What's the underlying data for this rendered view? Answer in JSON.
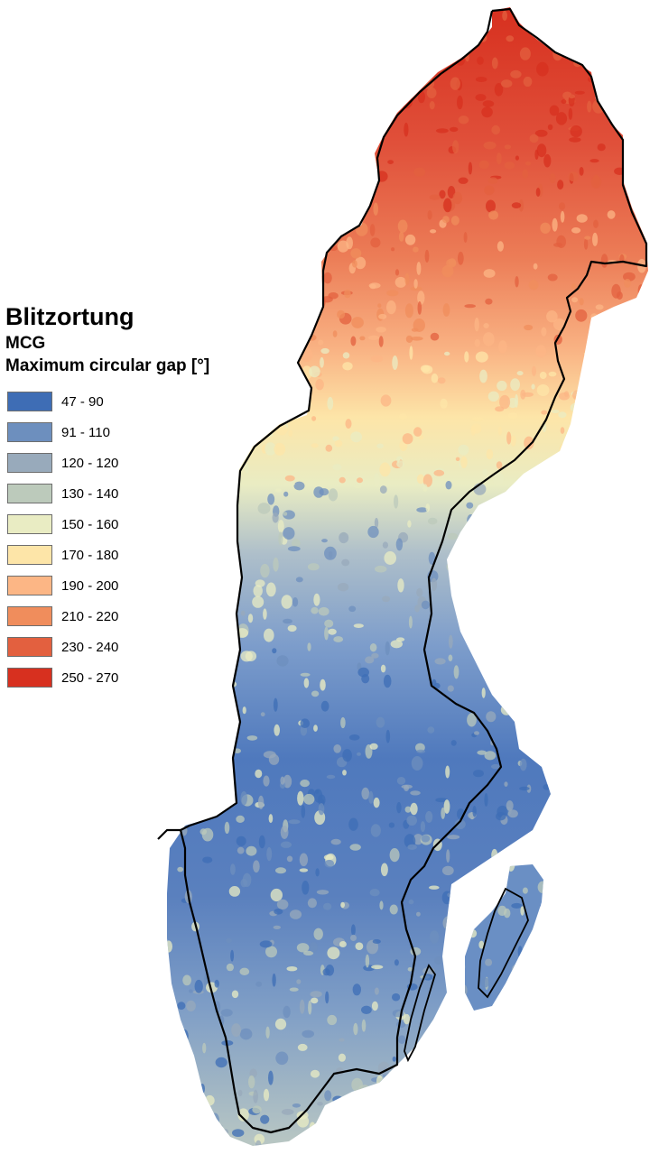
{
  "legend": {
    "title": "Blitzortung",
    "subtitle": "MCG",
    "variable": "Maximum circular gap [°]",
    "classes": [
      {
        "label": "47 - 90",
        "color": "#3e6db5"
      },
      {
        "label": "91 - 110",
        "color": "#6d8fbe"
      },
      {
        "label": "120 - 120",
        "color": "#98aabb"
      },
      {
        "label": "130 - 140",
        "color": "#bccabb"
      },
      {
        "label": "150 - 160",
        "color": "#e9ecc3"
      },
      {
        "label": "170 - 180",
        "color": "#fde5a8"
      },
      {
        "label": "190 - 200",
        "color": "#fcb685"
      },
      {
        "label": "210 - 220",
        "color": "#f08d5c"
      },
      {
        "label": "230 - 240",
        "color": "#e3603f"
      },
      {
        "label": "250 - 270",
        "color": "#d7301f"
      }
    ]
  },
  "map": {
    "region": "Sweden",
    "gradient_description": "values high in the north, low in the south",
    "border_color": "#000000"
  }
}
